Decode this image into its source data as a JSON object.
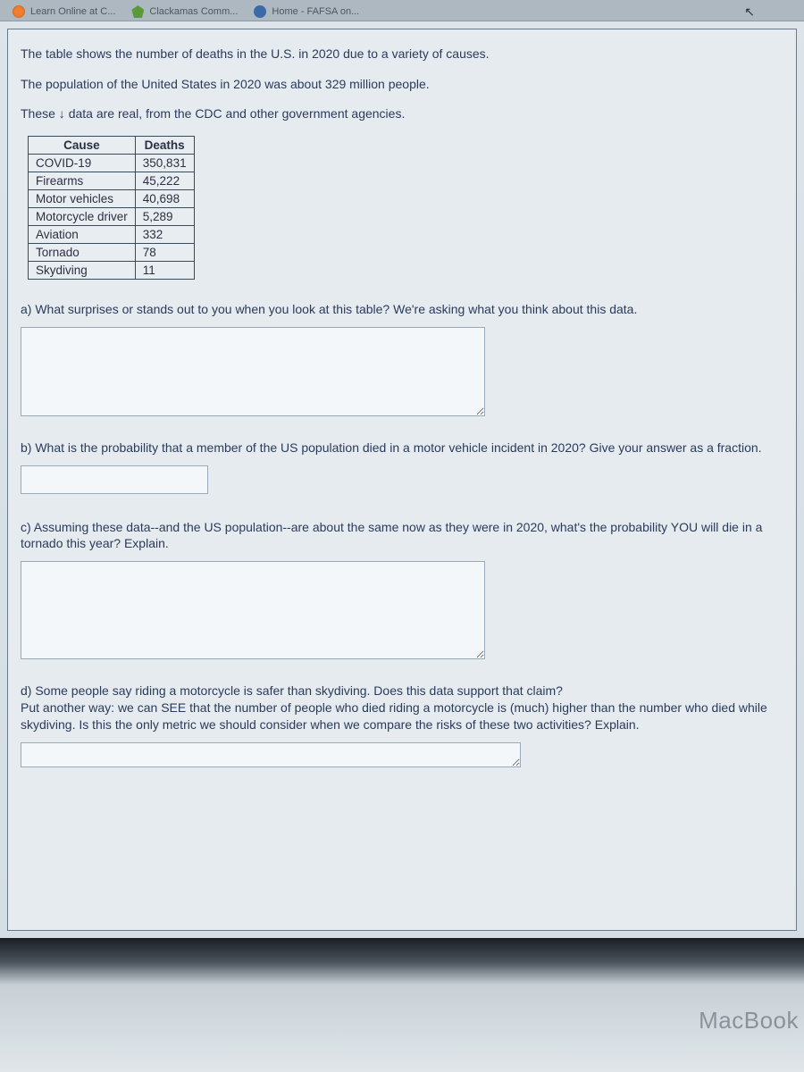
{
  "tabs": [
    {
      "label": "Learn Online at C...",
      "icon": "orange"
    },
    {
      "label": "Clackamas Comm...",
      "icon": "green"
    },
    {
      "label": "Home - FAFSA on...",
      "icon": "blue"
    }
  ],
  "intro": {
    "line1": "The table shows the number of deaths in the U.S. in 2020 due to a variety of causes.",
    "line2": "The population of the United States in 2020 was about 329 million people.",
    "line3": "These ↓ data are real, from the CDC and other government agencies."
  },
  "table": {
    "header_cause": "Cause",
    "header_deaths": "Deaths",
    "rows": [
      {
        "cause": "COVID-19",
        "deaths": "350,831"
      },
      {
        "cause": "Firearms",
        "deaths": "45,222"
      },
      {
        "cause": "Motor vehicles",
        "deaths": "40,698"
      },
      {
        "cause": "Motorcycle driver",
        "deaths": "5,289"
      },
      {
        "cause": "Aviation",
        "deaths": "332"
      },
      {
        "cause": "Tornado",
        "deaths": "78"
      },
      {
        "cause": "Skydiving",
        "deaths": "11"
      }
    ]
  },
  "questions": {
    "a": "a) What surprises or stands out to you when you look at this table? We're asking what you think about this data.",
    "b": "b) What is the probability that a member of the US population died in a motor vehicle incident in 2020? Give your answer as a fraction.",
    "c": "c) Assuming these data--and the US population--are about the same now as they were in 2020, what's the probability YOU will die in a tornado this year? Explain.",
    "d": "d) Some people say riding a motorcycle is safer than skydiving. Does this data support that claim?\nPut another way: we can SEE that the number of people who died riding a motorcycle is (much) higher than the number who died while skydiving. Is this the only metric we should consider when we compare the risks of these two activities? Explain."
  },
  "device_label": "MacBook",
  "colors": {
    "page_bg": "#e6ebf0",
    "text": "#2a3b5a",
    "border": "#3a4a5a",
    "tab_bar": "#aeb8c0"
  }
}
